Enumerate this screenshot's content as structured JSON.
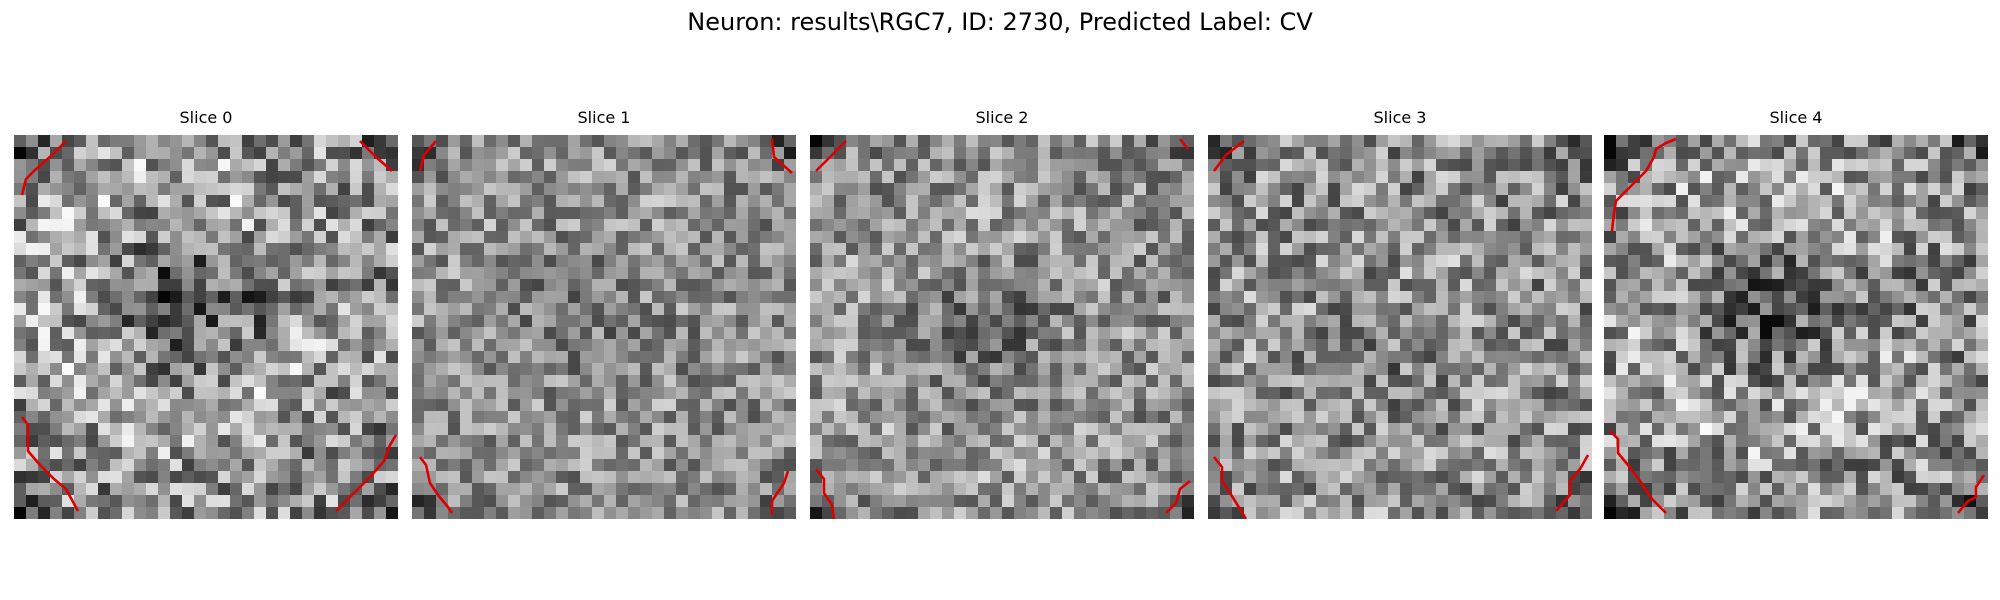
{
  "figure": {
    "title": "Neuron: results\\RGC7, ID: 2730, Predicted Label: CV",
    "grid_size": 32,
    "contour_color": "#dd0000"
  },
  "slices": [
    {
      "title": "Slice 0",
      "seed": 11,
      "blob_strength": 0.9,
      "contrast": 1.25
    },
    {
      "title": "Slice 1",
      "seed": 23,
      "blob_strength": 0.35,
      "contrast": 0.9
    },
    {
      "title": "Slice 2",
      "seed": 37,
      "blob_strength": 0.5,
      "contrast": 0.95
    },
    {
      "title": "Slice 3",
      "seed": 51,
      "blob_strength": 0.3,
      "contrast": 1.1
    },
    {
      "title": "Slice 4",
      "seed": 67,
      "blob_strength": 0.85,
      "contrast": 1.2
    }
  ]
}
